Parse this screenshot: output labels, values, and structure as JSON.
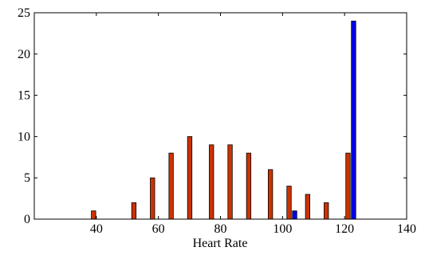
{
  "chart_data": {
    "type": "bar",
    "title": "",
    "xlabel": "Heart Rate",
    "ylabel": "",
    "xlim": [
      20,
      140
    ],
    "ylim": [
      0,
      25
    ],
    "x_ticks": [
      40,
      60,
      80,
      100,
      120,
      140
    ],
    "y_ticks": [
      0,
      5,
      10,
      15,
      20,
      25
    ],
    "grid": false,
    "legend": "none",
    "series": [
      {
        "color": "#cc3300",
        "bar_offset": -0.9,
        "points": [
          {
            "x": 34,
            "y": 0
          },
          {
            "x": 40,
            "y": 1
          },
          {
            "x": 46,
            "y": 0
          },
          {
            "x": 53,
            "y": 2
          },
          {
            "x": 59,
            "y": 5
          },
          {
            "x": 65,
            "y": 8
          },
          {
            "x": 71,
            "y": 10
          },
          {
            "x": 78,
            "y": 9
          },
          {
            "x": 84,
            "y": 9
          },
          {
            "x": 90,
            "y": 8
          },
          {
            "x": 97,
            "y": 6
          },
          {
            "x": 103,
            "y": 4
          },
          {
            "x": 109,
            "y": 3
          },
          {
            "x": 115,
            "y": 2
          },
          {
            "x": 122,
            "y": 8
          }
        ]
      },
      {
        "color": "#0000ee",
        "bar_offset": 0.9,
        "points": [
          {
            "x": 34,
            "y": 0
          },
          {
            "x": 40,
            "y": 0
          },
          {
            "x": 46,
            "y": 0
          },
          {
            "x": 53,
            "y": 0
          },
          {
            "x": 59,
            "y": 0
          },
          {
            "x": 65,
            "y": 0
          },
          {
            "x": 71,
            "y": 0
          },
          {
            "x": 78,
            "y": 0
          },
          {
            "x": 84,
            "y": 0
          },
          {
            "x": 90,
            "y": 0
          },
          {
            "x": 97,
            "y": 0
          },
          {
            "x": 103,
            "y": 1
          },
          {
            "x": 109,
            "y": 0
          },
          {
            "x": 115,
            "y": 0
          },
          {
            "x": 122,
            "y": 24
          }
        ]
      }
    ]
  }
}
